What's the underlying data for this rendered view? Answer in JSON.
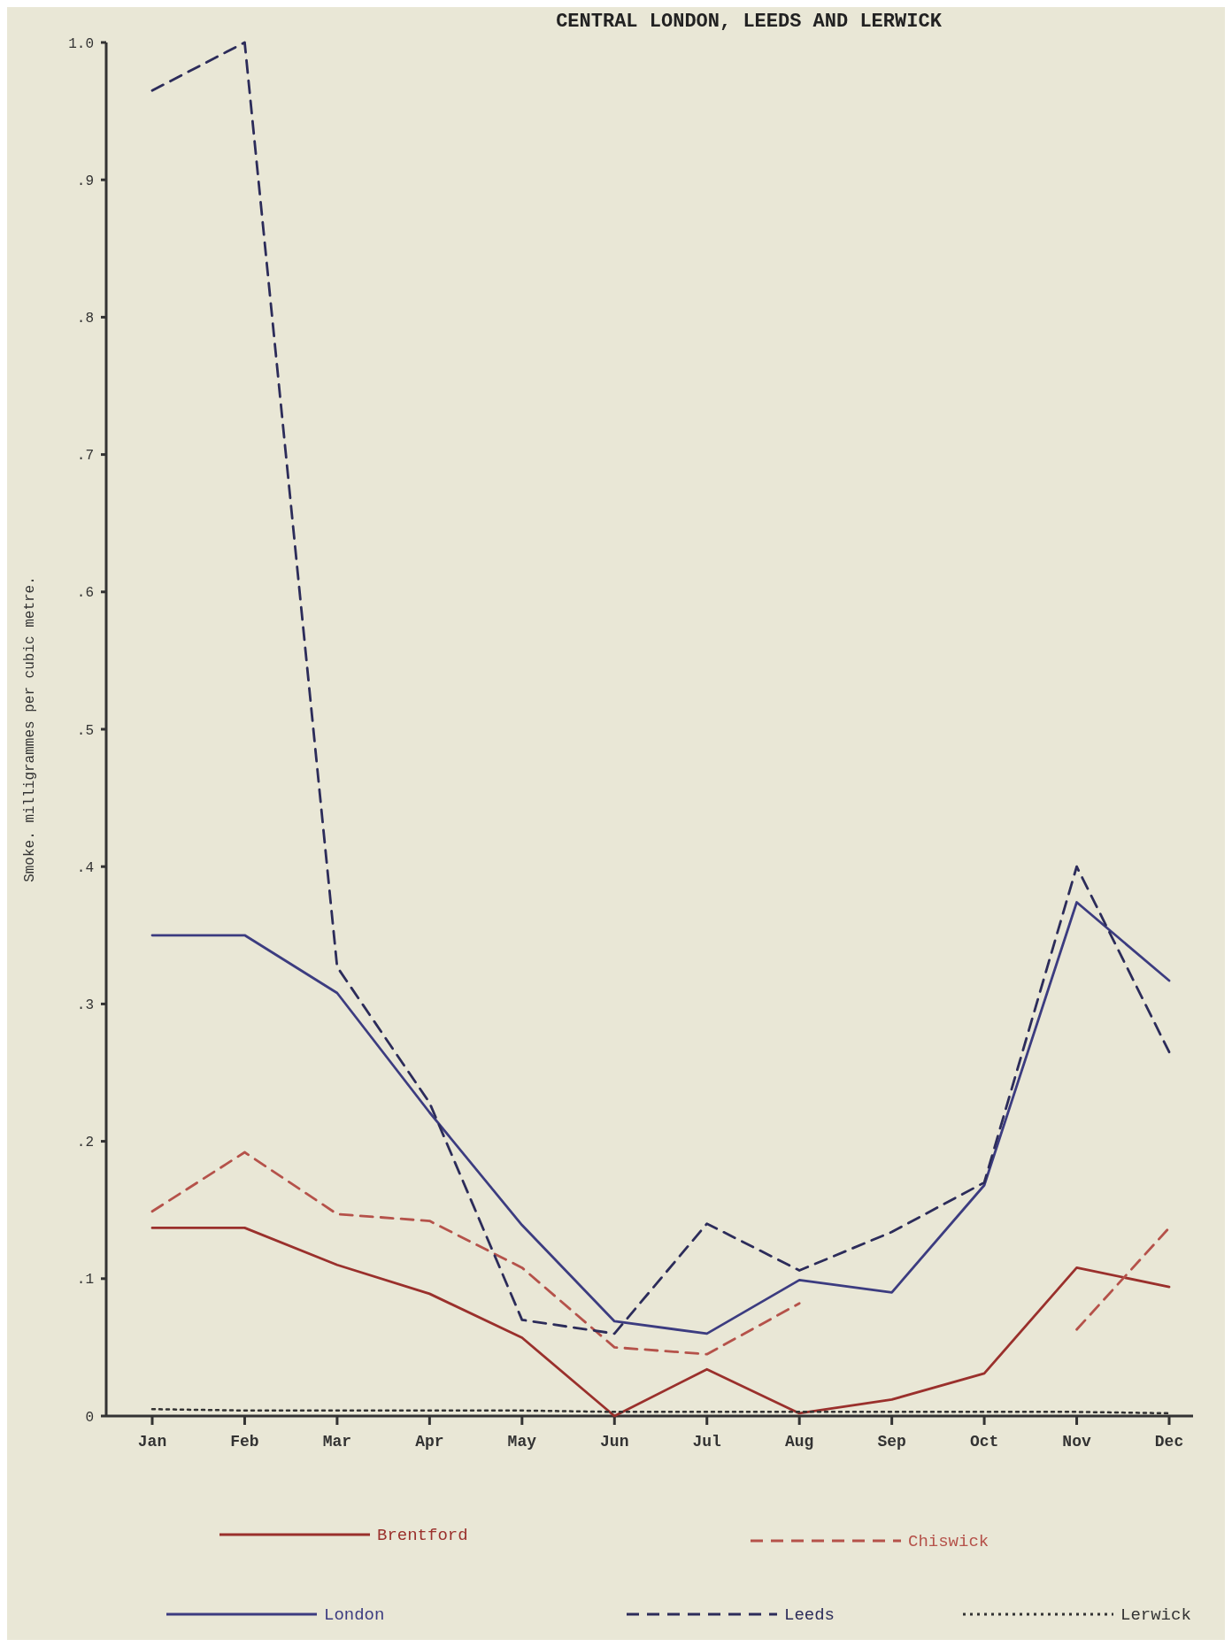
{
  "chart_data": {
    "type": "line",
    "title": "CENTRAL LONDON, LEEDS AND LERWICK",
    "ylabel": "Smoke. milligrammes per cubic metre.",
    "categories": [
      "Jan",
      "Feb",
      "Mar",
      "Apr",
      "May",
      "Jun",
      "Jul",
      "Aug",
      "Sep",
      "Oct",
      "Nov",
      "Dec"
    ],
    "ylim": [
      0,
      1.0
    ],
    "yticks": [
      0,
      {
        "value": 0.1,
        "label": ".1"
      },
      {
        "value": 0.2,
        "label": ".2"
      },
      {
        "value": 0.3,
        "label": ".3"
      },
      {
        "value": 0.4,
        "label": ".4"
      },
      {
        "value": 0.5,
        "label": ".5"
      },
      {
        "value": 0.6,
        "label": ".6"
      },
      {
        "value": 0.7,
        "label": ".7"
      },
      {
        "value": 0.8,
        "label": ".8"
      },
      {
        "value": 0.9,
        "label": ".9"
      },
      {
        "value": 1.0,
        "label": "1.0"
      }
    ],
    "grid": false,
    "legend": "bottom",
    "marker": "none",
    "series": [
      {
        "name": "Brentford",
        "color": "#9a302c",
        "line_style": "solid",
        "values": [
          0.137,
          0.137,
          0.11,
          0.089,
          0.057,
          0.0,
          0.034,
          0.002,
          0.012,
          0.031,
          0.108,
          0.094
        ]
      },
      {
        "name": "Chiswick",
        "color": "#b5524a",
        "line_style": "dashed",
        "values": [
          0.149,
          0.192,
          0.147,
          0.142,
          0.108,
          0.05,
          0.045,
          0.082,
          null,
          null,
          0.063,
          0.137
        ]
      },
      {
        "name": "London",
        "color": "#3c3c80",
        "line_style": "solid",
        "values": [
          0.35,
          0.35,
          0.308,
          0.221,
          0.139,
          0.069,
          0.06,
          0.099,
          0.09,
          0.168,
          0.374,
          0.317
        ]
      },
      {
        "name": "Leeds",
        "color": "#2c2c5a",
        "line_style": "dashed",
        "values": [
          0.965,
          1.0,
          0.327,
          0.228,
          0.07,
          0.06,
          0.14,
          0.106,
          0.134,
          0.17,
          0.4,
          0.265
        ]
      },
      {
        "name": "Lerwick",
        "color": "#333333",
        "line_style": "dotted",
        "values": [
          0.005,
          0.004,
          0.004,
          0.004,
          0.004,
          0.003,
          0.003,
          0.003,
          0.003,
          0.003,
          0.003,
          0.002
        ]
      }
    ]
  }
}
